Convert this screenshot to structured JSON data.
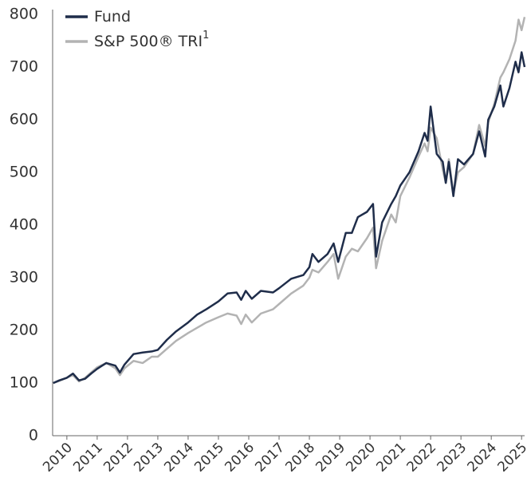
{
  "chart_data": {
    "type": "line",
    "x": [
      2009.55,
      2009.75,
      2010.0,
      2010.2,
      2010.4,
      2010.6,
      2010.8,
      2011.0,
      2011.3,
      2011.6,
      2011.75,
      2011.9,
      2012.2,
      2012.5,
      2012.8,
      2013.0,
      2013.3,
      2013.6,
      2014.0,
      2014.3,
      2014.6,
      2015.0,
      2015.3,
      2015.6,
      2015.75,
      2015.9,
      2016.1,
      2016.4,
      2016.8,
      2017.0,
      2017.4,
      2017.8,
      2018.0,
      2018.1,
      2018.3,
      2018.6,
      2018.8,
      2018.95,
      2019.2,
      2019.4,
      2019.6,
      2019.9,
      2020.1,
      2020.2,
      2020.4,
      2020.7,
      2020.85,
      2021.0,
      2021.3,
      2021.6,
      2021.8,
      2021.9,
      2022.0,
      2022.2,
      2022.4,
      2022.5,
      2022.6,
      2022.75,
      2022.9,
      2023.1,
      2023.4,
      2023.6,
      2023.8,
      2023.9,
      2024.1,
      2024.3,
      2024.4,
      2024.6,
      2024.8,
      2024.9,
      2025.0,
      2025.1
    ],
    "series": [
      {
        "name": "Fund",
        "color": "#1f2d4a",
        "values": [
          100,
          105,
          110,
          118,
          105,
          108,
          118,
          127,
          138,
          133,
          120,
          135,
          155,
          158,
          160,
          163,
          182,
          198,
          215,
          230,
          240,
          255,
          270,
          272,
          258,
          275,
          260,
          275,
          272,
          280,
          298,
          305,
          320,
          345,
          330,
          345,
          365,
          330,
          385,
          385,
          415,
          425,
          440,
          340,
          405,
          440,
          455,
          475,
          500,
          540,
          575,
          560,
          625,
          535,
          520,
          480,
          520,
          455,
          525,
          515,
          535,
          578,
          530,
          600,
          625,
          665,
          625,
          660,
          710,
          690,
          728,
          700
        ]
      },
      {
        "name": "S&P 500® TRI",
        "footnote": "1",
        "color": "#b3b3b3",
        "values": [
          100,
          104,
          110,
          115,
          103,
          110,
          120,
          130,
          138,
          128,
          115,
          128,
          142,
          138,
          150,
          150,
          165,
          180,
          195,
          205,
          215,
          225,
          232,
          228,
          212,
          230,
          215,
          232,
          240,
          250,
          270,
          285,
          300,
          315,
          310,
          330,
          345,
          298,
          340,
          355,
          350,
          375,
          395,
          318,
          370,
          420,
          405,
          455,
          490,
          530,
          555,
          540,
          585,
          565,
          505,
          480,
          525,
          460,
          500,
          510,
          535,
          590,
          550,
          595,
          630,
          680,
          690,
          715,
          750,
          790,
          770,
          795
        ]
      }
    ],
    "xlim": [
      2009.53,
      2025.1
    ],
    "xticks": [
      2010,
      2011,
      2012,
      2013,
      2014,
      2015,
      2016,
      2017,
      2018,
      2019,
      2020,
      2021,
      2022,
      2023,
      2024,
      2025
    ],
    "ylim": [
      0,
      800
    ],
    "yticks": [
      0,
      100,
      200,
      300,
      400,
      500,
      600,
      700,
      800
    ],
    "grid": false,
    "legend": "top-left"
  }
}
